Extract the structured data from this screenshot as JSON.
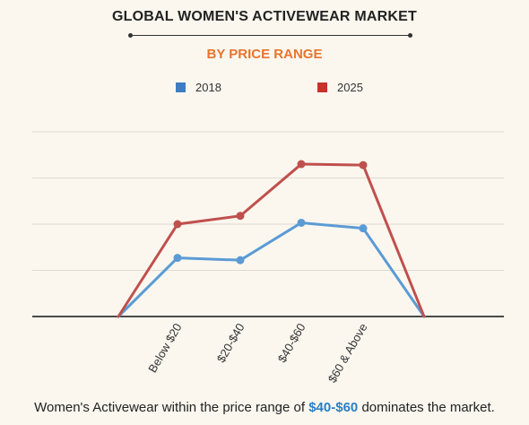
{
  "header": {
    "title": "GLOBAL WOMEN'S ACTIVEWEAR MARKET",
    "subtitle": "BY PRICE RANGE"
  },
  "caption": {
    "before": "Women's Activewear within the price range of ",
    "highlight": "$40-$60",
    "after": " dominates the market."
  },
  "colors": {
    "series_2018": "#5b9bd5",
    "series_2025": "#c0504d",
    "legend_2018": "#3e7dc2",
    "legend_2025": "#c8322b",
    "highlight": "#2a7fc4",
    "subtitle": "#e8742c"
  },
  "chart_data": {
    "type": "line",
    "categories": [
      "",
      "Below $20",
      "$20-$40",
      "$40-$60",
      "$60 & Above",
      ""
    ],
    "series": [
      {
        "name": "2018",
        "values": [
          0,
          1.27,
          1.22,
          2.03,
          1.91,
          0
        ]
      },
      {
        "name": "2025",
        "values": [
          0,
          2.0,
          2.18,
          3.3,
          3.28,
          0
        ]
      }
    ],
    "ylim": [
      0,
      4
    ],
    "grid": true,
    "legend": "top-center",
    "title": "",
    "xlabel": "",
    "ylabel": ""
  }
}
